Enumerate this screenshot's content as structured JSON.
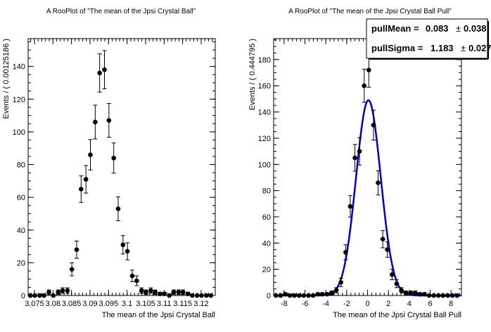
{
  "chart_data": [
    {
      "type": "scatter",
      "title": "A RooPlot of \"The mean of the  Jpsi Crystal Ball\"",
      "xlabel": "The mean of the  Jpsi Crystal Ball",
      "ylabel": "Events / ( 0.00125186 )",
      "xlim": [
        3.0733,
        3.1238
      ],
      "ylim": [
        0,
        157
      ],
      "grid": false,
      "xticks": [
        3.075,
        3.08,
        3.085,
        3.09,
        3.095,
        3.1,
        3.105,
        3.11,
        3.115,
        3.12
      ],
      "xtick_labels": [
        "3.075",
        "3.08",
        "3.085",
        "3.09",
        "3.095",
        "3.1",
        "3.105",
        "3.11",
        "3.115",
        "3.12"
      ],
      "yticks": [
        0,
        20,
        40,
        60,
        80,
        100,
        120,
        140
      ],
      "ytick_labels": [
        "0",
        "20",
        "40",
        "60",
        "80",
        "100",
        "120",
        "140"
      ],
      "series": [
        {
          "x": [
            3.0739,
            3.0751,
            3.0764,
            3.0776,
            3.0789,
            3.0801,
            3.0814,
            3.0826,
            3.0839,
            3.0851,
            3.0864,
            3.0876,
            3.0889,
            3.0901,
            3.0914,
            3.0926,
            3.0939,
            3.0951,
            3.0964,
            3.0976,
            3.0989,
            3.1001,
            3.1014,
            3.1026,
            3.1039,
            3.1051,
            3.1064,
            3.1076,
            3.1089,
            3.1101,
            3.1114,
            3.1126,
            3.1139,
            3.1151,
            3.1164,
            3.1176,
            3.1189,
            3.1201,
            3.1214,
            3.1226
          ],
          "y": [
            0,
            0,
            0,
            0,
            2,
            0,
            2,
            3,
            3,
            16,
            28,
            65,
            71,
            86,
            106,
            136,
            138,
            107,
            84,
            53,
            31,
            27,
            12,
            9,
            3,
            2,
            3,
            2,
            1,
            1,
            0,
            2,
            2,
            2,
            1,
            0,
            0,
            0,
            0,
            0
          ],
          "yerr": [
            0,
            0,
            0,
            0,
            1.4,
            0,
            1.4,
            1.7,
            1.7,
            4.0,
            5.3,
            8.1,
            8.4,
            9.3,
            10.3,
            11.7,
            11.7,
            10.3,
            9.2,
            7.3,
            5.6,
            5.2,
            3.5,
            3.0,
            1.7,
            1.4,
            1.7,
            1.4,
            1.0,
            1.0,
            0,
            1.4,
            1.4,
            1.4,
            1.0,
            0,
            0,
            0,
            0,
            0
          ]
        }
      ]
    },
    {
      "type": "scatter",
      "title": "A RooPlot of \"The mean of the  Jpsi Crystal Ball Pull\"",
      "xlabel": "The mean of the  Jpsi Crystal Ball Pull",
      "ylabel": "Events / ( 0.444795 )",
      "xlim": [
        -9,
        9
      ],
      "ylim": [
        0,
        196
      ],
      "grid": false,
      "legend": "top-right",
      "xticks": [
        -8,
        -6,
        -4,
        -2,
        0,
        2,
        4,
        6,
        8
      ],
      "xtick_labels": [
        "-8",
        "-6",
        "-4",
        "-2",
        "0",
        "2",
        "4",
        "6",
        "8"
      ],
      "yticks": [
        0,
        20,
        40,
        60,
        80,
        100,
        120,
        140,
        160,
        180
      ],
      "ytick_labels": [
        "0",
        "20",
        "40",
        "60",
        "80",
        "100",
        "120",
        "140",
        "160",
        "180"
      ],
      "stats": [
        {
          "name": "pullMean",
          "label": "pullMean =",
          "value": "0.083",
          "pm": "±",
          "error": "0.038"
        },
        {
          "name": "pullSigma",
          "label": "pullSigma =",
          "value": "1.183",
          "pm": "±",
          "error": "0.027"
        }
      ],
      "fit": {
        "type": "gaussian",
        "mean": 0.083,
        "sigma": 1.183,
        "peak": 149,
        "color": "#0000cc"
      },
      "series": [
        {
          "x": [
            -8.78,
            -8.33,
            -7.89,
            -7.44,
            -7.0,
            -6.55,
            -6.11,
            -5.66,
            -5.22,
            -4.77,
            -4.33,
            -3.88,
            -3.44,
            -2.99,
            -2.55,
            -2.1,
            -1.66,
            -1.21,
            -0.77,
            -0.32,
            0.12,
            0.57,
            1.01,
            1.46,
            1.9,
            2.35,
            2.79,
            3.24,
            3.68,
            4.13,
            4.57,
            5.02,
            5.46,
            5.91,
            6.35,
            6.8,
            7.24,
            7.69,
            8.13,
            8.58
          ],
          "y": [
            0,
            0,
            1,
            0,
            0,
            0,
            0,
            0,
            0,
            1,
            1,
            1,
            2,
            4,
            10,
            33,
            68,
            105,
            110,
            160,
            172,
            130,
            86,
            43,
            35,
            16,
            9,
            4,
            2,
            2,
            2,
            1,
            1,
            0,
            0,
            0,
            0,
            0,
            0,
            0
          ],
          "yerr": [
            0,
            0,
            1.0,
            0,
            0,
            0,
            0,
            0,
            0,
            1.0,
            1.0,
            1.0,
            1.4,
            2.0,
            3.2,
            5.7,
            8.2,
            10.2,
            10.5,
            12.6,
            13.1,
            11.4,
            9.3,
            6.6,
            5.9,
            4.0,
            3.0,
            2.0,
            1.4,
            1.4,
            1.4,
            1.0,
            1.0,
            0,
            0,
            0,
            0,
            0,
            0,
            0
          ]
        }
      ]
    }
  ]
}
